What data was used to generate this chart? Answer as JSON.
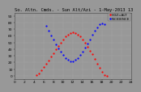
{
  "title": "So. Altn. Cmds. - Sun Alt/Azi - 1-May-2013 13",
  "legend_label1": "HOZ=ALT",
  "legend_label2": "INCIDENCE",
  "bg_color": "#989898",
  "plot_bg": "#989898",
  "grid_color": "#bbbbbb",
  "series1_color": "#ff0000",
  "series2_color": "#0000ff",
  "xlim": [
    0,
    24
  ],
  "ylim": [
    -5,
    95
  ],
  "ytick_vals": [
    0,
    10,
    20,
    30,
    40,
    50,
    60,
    70,
    80,
    90
  ],
  "ytick_labels": [
    "0",
    "10",
    "20",
    "30",
    "40",
    "50",
    "60",
    "70",
    "80",
    "90"
  ],
  "series1_x": [
    4.5,
    5.0,
    5.5,
    6.0,
    6.5,
    7.0,
    7.5,
    8.0,
    8.5,
    9.0,
    9.5,
    10.0,
    10.5,
    11.0,
    11.5,
    12.0,
    12.5,
    13.0,
    13.5,
    14.0,
    14.5,
    15.0,
    15.5,
    16.0,
    16.5,
    17.0,
    17.5,
    18.0,
    18.5,
    19.0
  ],
  "series1_y": [
    1,
    4,
    8,
    13,
    18,
    23,
    29,
    34,
    40,
    45,
    50,
    55,
    59,
    62,
    64,
    65,
    64,
    62,
    59,
    55,
    50,
    44,
    38,
    32,
    25,
    18,
    12,
    6,
    1,
    0
  ],
  "series2_x": [
    6.5,
    7.0,
    7.5,
    8.0,
    8.5,
    9.0,
    9.5,
    10.0,
    10.5,
    11.0,
    11.5,
    12.0,
    12.5,
    13.0,
    13.5,
    14.0,
    14.5,
    15.0,
    15.5,
    16.0,
    16.5,
    17.0,
    17.5,
    18.0,
    18.5
  ],
  "series2_y": [
    75,
    68,
    61,
    54,
    47,
    41,
    36,
    31,
    27,
    24,
    22,
    22,
    24,
    27,
    31,
    36,
    42,
    48,
    55,
    62,
    68,
    73,
    77,
    79,
    78
  ],
  "xtick_vals": [
    0,
    2,
    4,
    6,
    8,
    10,
    12,
    14,
    16,
    18,
    20,
    22,
    24
  ],
  "fontsize_title": 4.0,
  "fontsize_tick": 3.2,
  "fontsize_legend": 3.0,
  "marker_size": 1.2,
  "title_color": "#000000",
  "tick_color": "#000000",
  "legend_color1": "#ff0000",
  "legend_color2": "#0000ff"
}
